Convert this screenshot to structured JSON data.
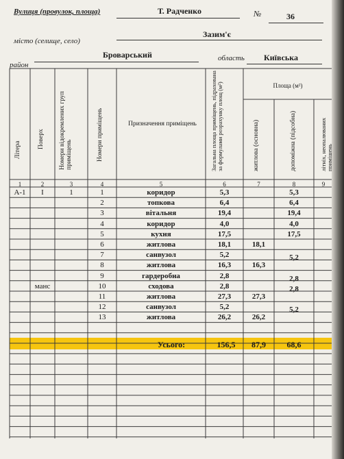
{
  "header": {
    "street_label": "Вулиця (провулок, площа)",
    "street_value": "Т. Радченко",
    "number_label": "№",
    "number_value": "36",
    "settlement_label": "місто (селище, село)",
    "settlement_value": "Зазим'є",
    "district_label": "район",
    "district_value": "Броварський",
    "region_label": "область",
    "region_value": "Київська"
  },
  "columns": {
    "litera": "Літера",
    "floor": "Поверх",
    "group_numbers": "Номери відокремлених груп приміщень",
    "room_numbers": "Номери приміщень",
    "purpose": "Призначення приміщень",
    "total_area": "Загальна площа приміщень, підрахована за формулами розрахунку площ (м²)",
    "area_group": "Площа (м²)",
    "living": "житлова (основна)",
    "auxiliary": "допоміжна (підсобна)",
    "unheated": "літніх, неопалюваних приміщень",
    "numbers": [
      "1",
      "2",
      "3",
      "4",
      "5",
      "6",
      "7",
      "8",
      "9"
    ]
  },
  "rows": [
    {
      "litera": "А-1",
      "floor": "І",
      "group": "1",
      "room": "1",
      "purpose": "коридор",
      "total": "5,3",
      "living": "",
      "aux": "5,3"
    },
    {
      "litera": "",
      "floor": "",
      "group": "",
      "room": "2",
      "purpose": "топкова",
      "total": "6,4",
      "living": "",
      "aux": "6,4"
    },
    {
      "litera": "",
      "floor": "",
      "group": "",
      "room": "3",
      "purpose": "вітальня",
      "total": "19,4",
      "living": "",
      "aux": "19,4"
    },
    {
      "litera": "",
      "floor": "",
      "group": "",
      "room": "4",
      "purpose": "коридор",
      "total": "4,0",
      "living": "",
      "aux": "4,0"
    },
    {
      "litera": "",
      "floor": "",
      "group": "",
      "room": "5",
      "purpose": "кухня",
      "total": "17,5",
      "living": "",
      "aux": "17,5"
    },
    {
      "litera": "",
      "floor": "",
      "group": "",
      "room": "6",
      "purpose": "житлова",
      "total": "18,1",
      "living": "18,1",
      "aux": ""
    },
    {
      "litera": "",
      "floor": "",
      "group": "",
      "room": "7",
      "purpose": "санвузол",
      "total": "5,2",
      "living": "",
      "aux": "5,2"
    },
    {
      "litera": "",
      "floor": "",
      "group": "",
      "room": "8",
      "purpose": "житлова",
      "total": "16,3",
      "living": "16,3",
      "aux": ""
    },
    {
      "litera": "",
      "floor": "",
      "group": "",
      "room": "9",
      "purpose": "гардеробна",
      "total": "2,8",
      "living": "",
      "aux": "2,8"
    },
    {
      "litera": "",
      "floor": "манс",
      "group": "",
      "room": "10",
      "purpose": "сходова",
      "total": "2,8",
      "living": "",
      "aux": "2,8"
    },
    {
      "litera": "",
      "floor": "",
      "group": "",
      "room": "11",
      "purpose": "житлова",
      "total": "27,3",
      "living": "27,3",
      "aux": ""
    },
    {
      "litera": "",
      "floor": "",
      "group": "",
      "room": "12",
      "purpose": "санвузол",
      "total": "5,2",
      "living": "",
      "aux": "5,2"
    },
    {
      "litera": "",
      "floor": "",
      "group": "",
      "room": "13",
      "purpose": "житлова",
      "total": "26,2",
      "living": "26,2",
      "aux": ""
    }
  ],
  "totals": {
    "label": "Усього:",
    "total": "156,5",
    "living": "87,9",
    "aux": "68,6"
  },
  "colors": {
    "paper": "#f1efe9",
    "highlight": "#f6c50f"
  }
}
